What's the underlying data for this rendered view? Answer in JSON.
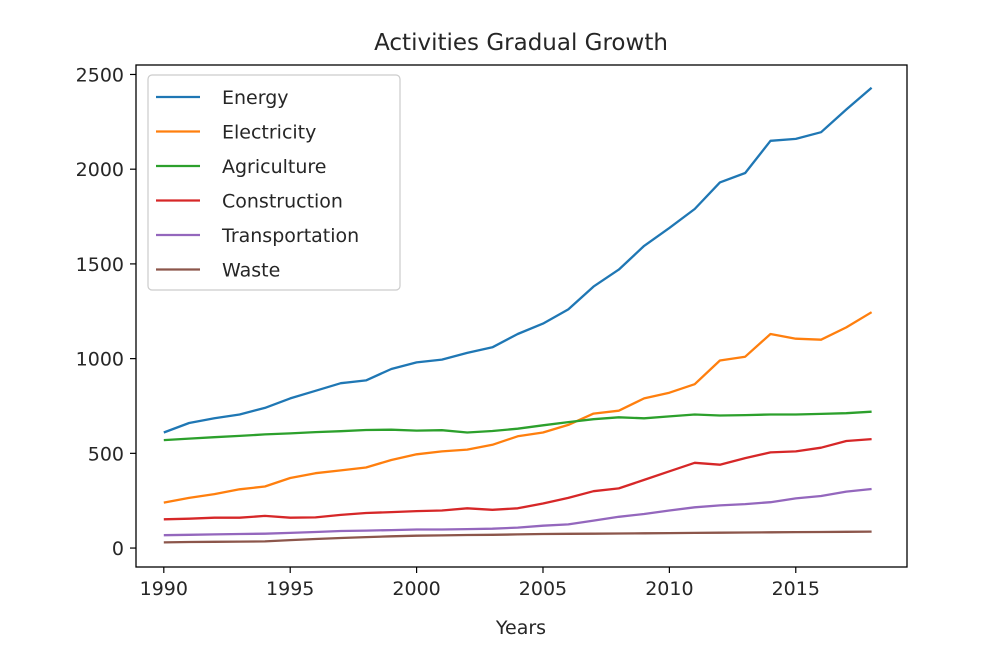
{
  "chart_data": {
    "type": "line",
    "title": "Activities Gradual Growth",
    "xlabel": "Years",
    "ylabel": "",
    "xlim": [
      1988.9,
      2019.4
    ],
    "ylim": [
      -100,
      2550
    ],
    "xticks": [
      1990,
      1995,
      2000,
      2005,
      2010,
      2015
    ],
    "yticks": [
      0,
      500,
      1000,
      1500,
      2000,
      2500
    ],
    "grid": false,
    "legend_position": "top-left",
    "x": [
      1990,
      1991,
      1992,
      1993,
      1994,
      1995,
      1996,
      1997,
      1998,
      1999,
      2000,
      2001,
      2002,
      2003,
      2004,
      2005,
      2006,
      2007,
      2008,
      2009,
      2010,
      2011,
      2012,
      2013,
      2014,
      2015,
      2016,
      2017,
      2018
    ],
    "series": [
      {
        "name": "Energy",
        "color": "#1f77b4",
        "values": [
          610,
          660,
          685,
          705,
          740,
          790,
          830,
          870,
          885,
          945,
          980,
          995,
          1030,
          1060,
          1130,
          1185,
          1260,
          1380,
          1470,
          1595,
          1690,
          1790,
          1930,
          1980,
          2150,
          2160,
          2195,
          2315,
          2430
        ]
      },
      {
        "name": "Electricity",
        "color": "#ff7f0e",
        "values": [
          240,
          265,
          285,
          310,
          325,
          370,
          395,
          410,
          425,
          465,
          495,
          510,
          520,
          545,
          590,
          610,
          650,
          710,
          725,
          790,
          820,
          865,
          990,
          1010,
          1130,
          1105,
          1100,
          1165,
          1245
        ]
      },
      {
        "name": "Agriculture",
        "color": "#2ca02c",
        "values": [
          570,
          578,
          585,
          592,
          600,
          605,
          612,
          617,
          623,
          625,
          620,
          622,
          610,
          618,
          630,
          648,
          665,
          680,
          690,
          685,
          695,
          705,
          700,
          702,
          705,
          705,
          708,
          712,
          720
        ]
      },
      {
        "name": "Construction",
        "color": "#d62728",
        "values": [
          152,
          155,
          160,
          160,
          170,
          160,
          162,
          175,
          185,
          190,
          195,
          198,
          210,
          202,
          210,
          235,
          265,
          300,
          315,
          360,
          405,
          450,
          440,
          475,
          505,
          510,
          530,
          565,
          575
        ]
      },
      {
        "name": "Transportation",
        "color": "#9467bd",
        "values": [
          68,
          70,
          72,
          74,
          76,
          80,
          85,
          90,
          92,
          95,
          98,
          98,
          100,
          102,
          108,
          118,
          125,
          145,
          165,
          180,
          198,
          215,
          225,
          232,
          242,
          262,
          275,
          298,
          312
        ]
      },
      {
        "name": "Waste",
        "color": "#8c564b",
        "values": [
          30,
          32,
          33,
          34,
          35,
          42,
          48,
          53,
          58,
          62,
          65,
          67,
          69,
          70,
          72,
          74,
          75,
          76,
          77,
          78,
          79,
          80,
          81,
          82,
          83,
          84,
          85,
          86,
          87
        ]
      }
    ]
  }
}
